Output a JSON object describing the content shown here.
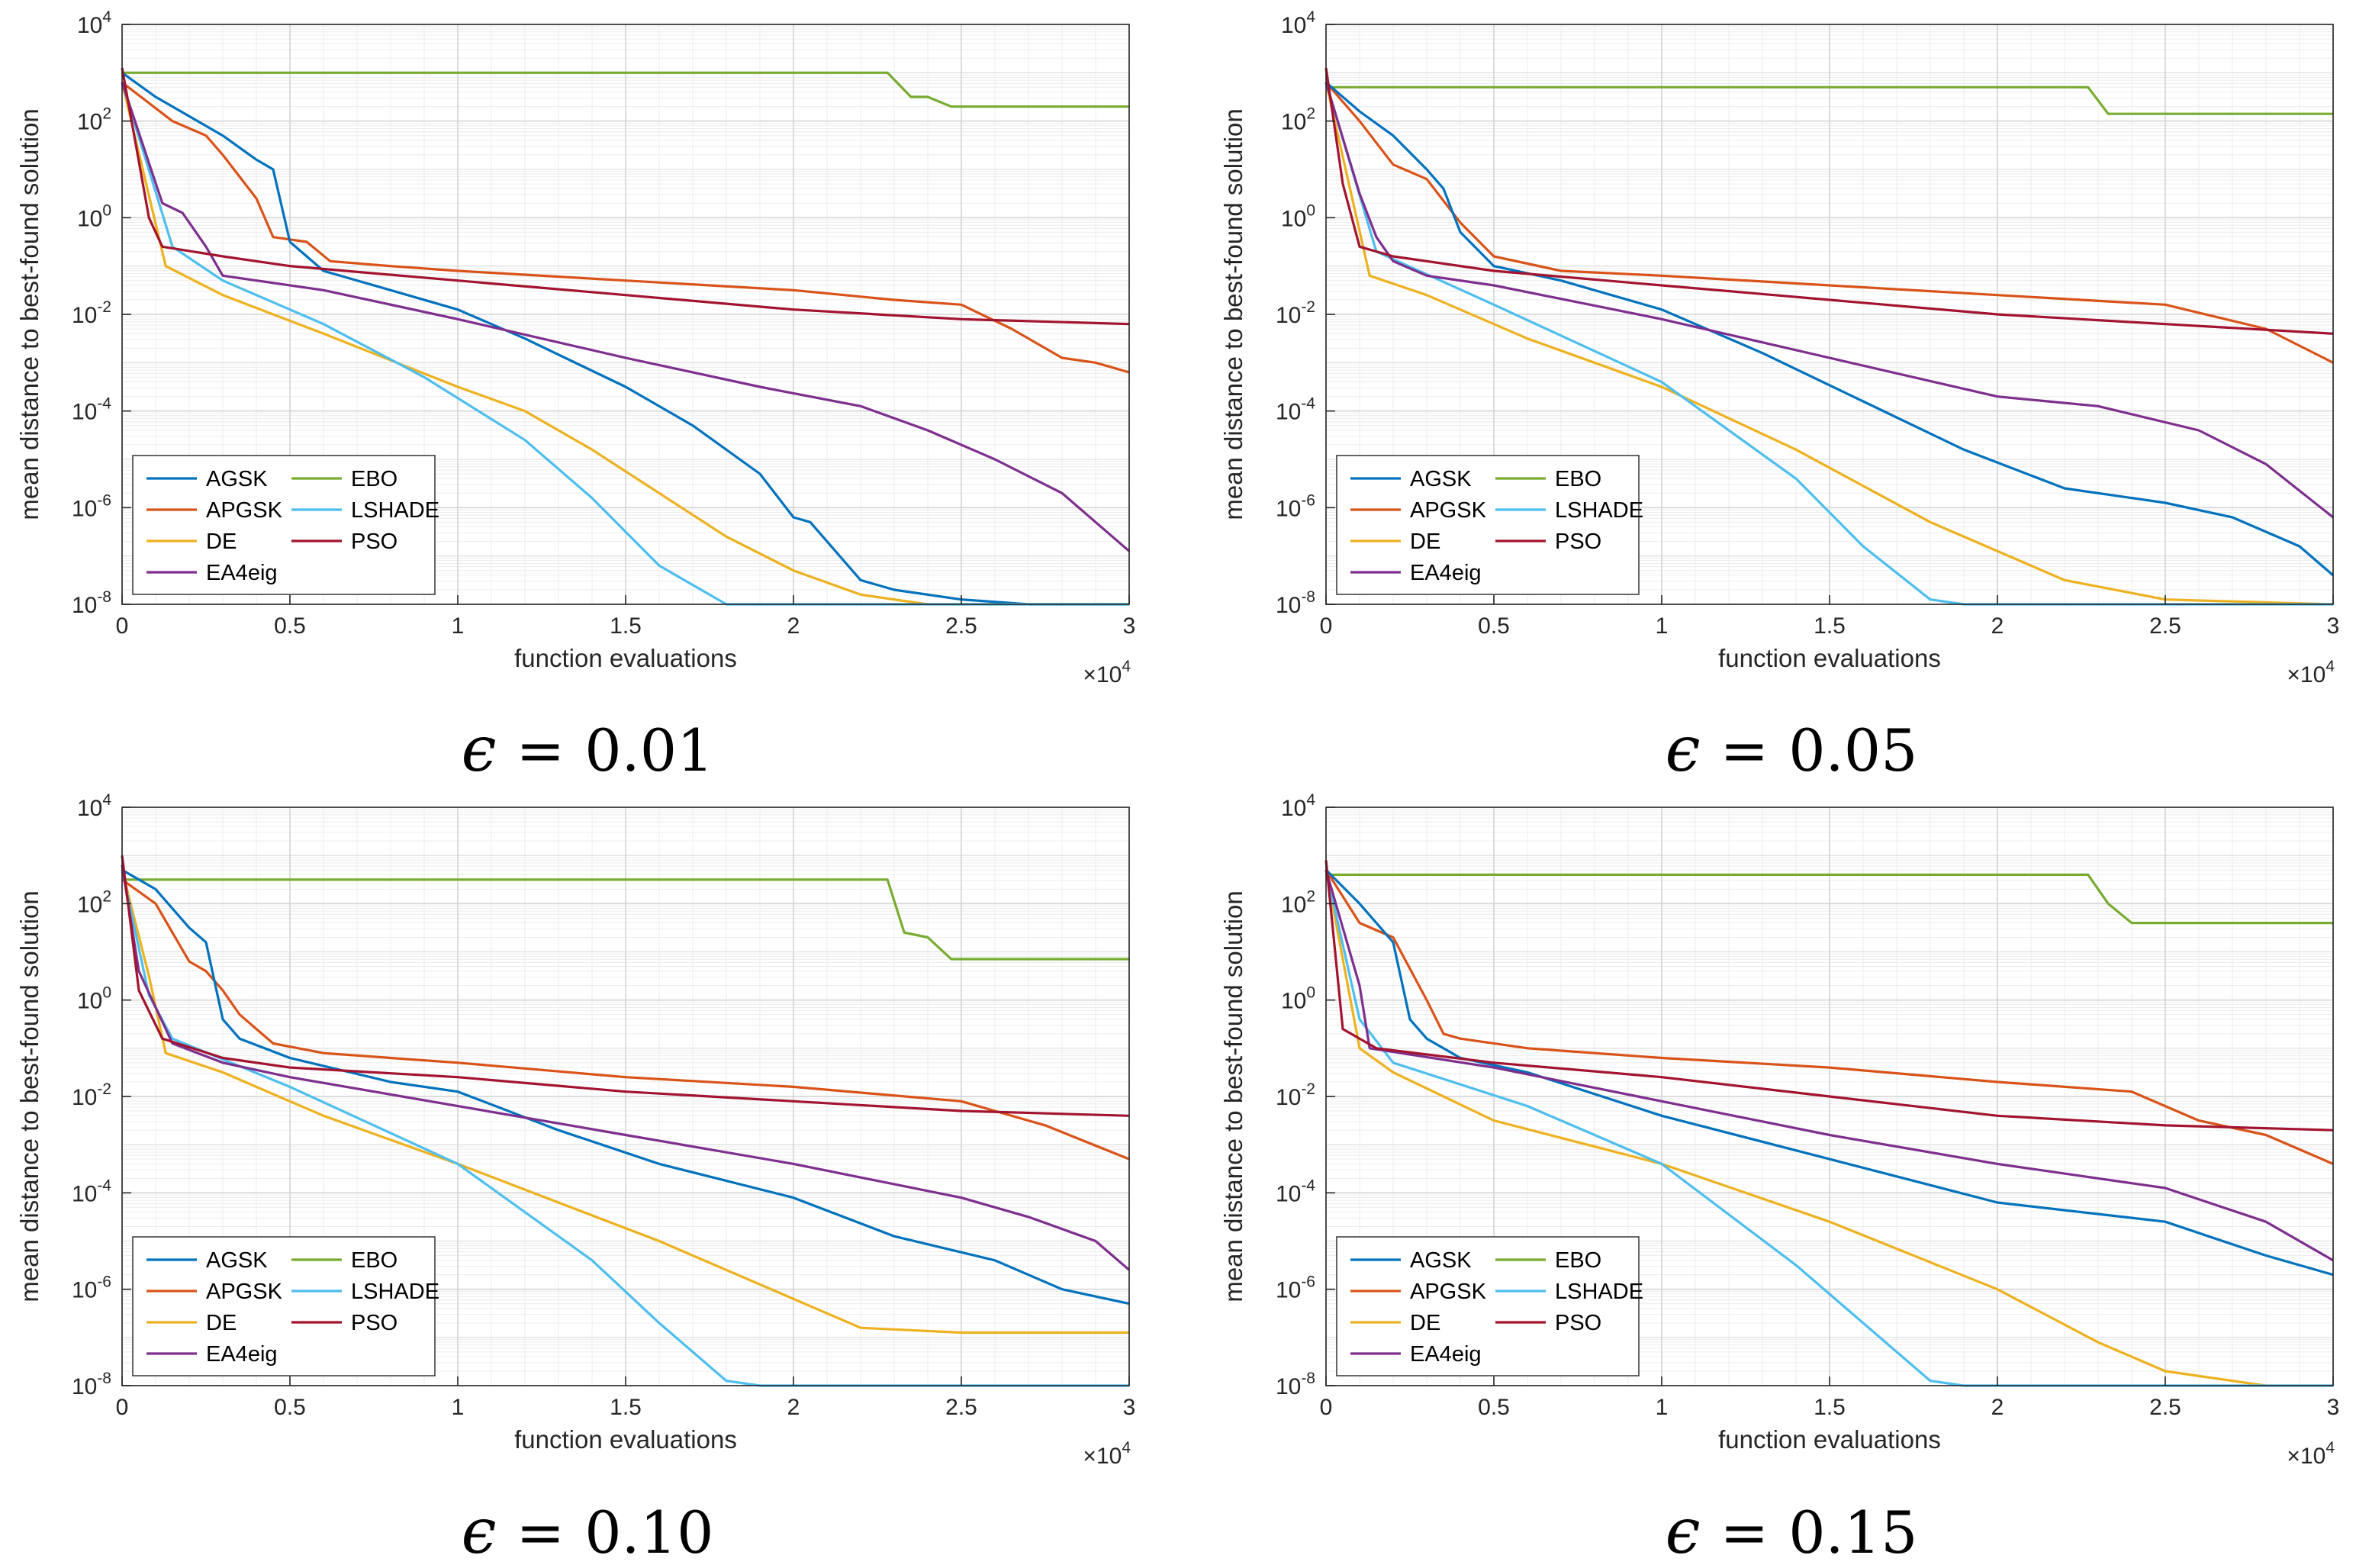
{
  "colors": {
    "AGSK": "#0072BD",
    "APGSK": "#D95319",
    "DE": "#EDB120",
    "EA4eig": "#7E2F8E",
    "EBO": "#77AC30",
    "LSHADE": "#4DBEEE",
    "PSO": "#A2142F"
  },
  "chart_data": [
    {
      "type": "line",
      "caption": {
        "symbol": "ϵ",
        "relation": "=",
        "value": "0.01"
      },
      "xlabel": "function evaluations",
      "ylabel": "mean distance to best-found solution",
      "x_multiplier": {
        "base": "×10",
        "exp": "4"
      },
      "xlim": [
        0,
        3
      ],
      "xscale": "linear",
      "ylim": [
        1e-08,
        10000.0
      ],
      "yscale": "log",
      "xticks": [
        "0",
        "0.5",
        "1",
        "1.5",
        "2",
        "2.5",
        "3"
      ],
      "yticks": [
        {
          "base": "10",
          "exp": "-8"
        },
        {
          "base": "10",
          "exp": "-6"
        },
        {
          "base": "10",
          "exp": "-4"
        },
        {
          "base": "10",
          "exp": "-2"
        },
        {
          "base": "10",
          "exp": "0"
        },
        {
          "base": "10",
          "exp": "2"
        },
        {
          "base": "10",
          "exp": "4"
        }
      ],
      "legend": {
        "location": "bottom-left",
        "entries": [
          "AGSK",
          "EBO",
          "APGSK",
          "LSHADE",
          "DE",
          "PSO",
          "EA4eig"
        ]
      },
      "series": [
        {
          "name": "EBO",
          "x": [
            0,
            2.28,
            2.35,
            2.4,
            2.47,
            3.0
          ],
          "y": [
            3.0,
            3.0,
            2.5,
            2.5,
            2.3,
            2.3
          ]
        },
        {
          "name": "APGSK",
          "x": [
            0,
            0.15,
            0.25,
            0.3,
            0.4,
            0.45,
            0.55,
            0.62,
            0.8,
            1.0,
            1.5,
            2.0,
            2.3,
            2.5,
            2.65,
            2.8,
            2.9,
            3.0
          ],
          "y": [
            2.8,
            2.0,
            1.7,
            1.3,
            0.4,
            -0.4,
            -0.5,
            -0.9,
            -1.0,
            -1.1,
            -1.3,
            -1.5,
            -1.7,
            -1.8,
            -2.3,
            -2.9,
            -3.0,
            -3.2
          ]
        },
        {
          "name": "AGSK",
          "x": [
            0,
            0.1,
            0.3,
            0.4,
            0.45,
            0.5,
            0.6,
            0.8,
            1.0,
            1.2,
            1.5,
            1.7,
            1.9,
            2.0,
            2.05,
            2.2,
            2.3,
            2.5,
            2.7,
            3.0
          ],
          "y": [
            3.0,
            2.5,
            1.7,
            1.2,
            1.0,
            -0.5,
            -1.1,
            -1.5,
            -1.9,
            -2.5,
            -3.5,
            -4.3,
            -5.3,
            -6.2,
            -6.3,
            -7.5,
            -7.7,
            -7.9,
            -8.0,
            -8.0
          ]
        },
        {
          "name": "DE",
          "x": [
            0,
            0.13,
            0.3,
            0.6,
            1.0,
            1.2,
            1.4,
            1.6,
            1.8,
            2.0,
            2.2,
            2.4,
            3.0
          ],
          "y": [
            2.8,
            -1.0,
            -1.6,
            -2.4,
            -3.5,
            -4.0,
            -4.8,
            -5.7,
            -6.6,
            -7.3,
            -7.8,
            -8.0,
            -8.0
          ]
        },
        {
          "name": "LSHADE",
          "x": [
            0,
            0.15,
            0.3,
            0.6,
            0.9,
            1.2,
            1.4,
            1.6,
            1.8,
            1.9,
            3.0
          ],
          "y": [
            2.8,
            -0.6,
            -1.3,
            -2.2,
            -3.3,
            -4.6,
            -5.8,
            -7.2,
            -8.0,
            -8.0,
            -8.0
          ]
        },
        {
          "name": "EA4eig",
          "x": [
            0,
            0.12,
            0.18,
            0.25,
            0.3,
            0.6,
            1.0,
            1.5,
            1.9,
            2.2,
            2.4,
            2.6,
            2.8,
            2.9,
            3.0
          ],
          "y": [
            2.8,
            0.3,
            0.1,
            -0.6,
            -1.2,
            -1.5,
            -2.1,
            -2.9,
            -3.5,
            -3.9,
            -4.4,
            -5.0,
            -5.7,
            -6.3,
            -6.9
          ]
        },
        {
          "name": "PSO",
          "x": [
            0,
            0.08,
            0.12,
            0.3,
            0.5,
            1.0,
            1.5,
            2.0,
            2.5,
            3.0
          ],
          "y": [
            3.1,
            0.0,
            -0.6,
            -0.8,
            -1.0,
            -1.3,
            -1.6,
            -1.9,
            -2.1,
            -2.2
          ]
        }
      ]
    },
    {
      "type": "line",
      "caption": {
        "symbol": "ϵ",
        "relation": "=",
        "value": "0.05"
      },
      "xlabel": "function evaluations",
      "ylabel": "mean distance to best-found solution",
      "x_multiplier": {
        "base": "×10",
        "exp": "4"
      },
      "xlim": [
        0,
        3
      ],
      "xscale": "linear",
      "ylim": [
        1e-08,
        10000.0
      ],
      "yscale": "log",
      "xticks": [
        "0",
        "0.5",
        "1",
        "1.5",
        "2",
        "2.5",
        "3"
      ],
      "yticks": [
        {
          "base": "10",
          "exp": "-8"
        },
        {
          "base": "10",
          "exp": "-6"
        },
        {
          "base": "10",
          "exp": "-4"
        },
        {
          "base": "10",
          "exp": "-2"
        },
        {
          "base": "10",
          "exp": "0"
        },
        {
          "base": "10",
          "exp": "2"
        },
        {
          "base": "10",
          "exp": "4"
        }
      ],
      "legend": {
        "location": "bottom-left",
        "entries": [
          "AGSK",
          "EBO",
          "APGSK",
          "LSHADE",
          "DE",
          "PSO",
          "EA4eig"
        ]
      },
      "series": [
        {
          "name": "EBO",
          "x": [
            0,
            2.27,
            2.33,
            3.0
          ],
          "y": [
            2.7,
            2.7,
            2.15,
            2.15
          ]
        },
        {
          "name": "APGSK",
          "x": [
            0,
            0.1,
            0.2,
            0.3,
            0.4,
            0.5,
            0.7,
            1.0,
            1.5,
            2.0,
            2.5,
            2.8,
            3.0
          ],
          "y": [
            2.8,
            2.0,
            1.1,
            0.8,
            -0.1,
            -0.8,
            -1.1,
            -1.2,
            -1.4,
            -1.6,
            -1.8,
            -2.3,
            -3.0
          ]
        },
        {
          "name": "AGSK",
          "x": [
            0,
            0.1,
            0.2,
            0.3,
            0.35,
            0.4,
            0.5,
            0.7,
            1.0,
            1.3,
            1.6,
            1.9,
            2.2,
            2.5,
            2.7,
            2.9,
            3.0
          ],
          "y": [
            2.8,
            2.2,
            1.7,
            1.0,
            0.6,
            -0.3,
            -1.0,
            -1.3,
            -1.9,
            -2.8,
            -3.8,
            -4.8,
            -5.6,
            -5.9,
            -6.2,
            -6.8,
            -7.4
          ]
        },
        {
          "name": "DE",
          "x": [
            0,
            0.13,
            0.3,
            0.6,
            1.0,
            1.4,
            1.8,
            2.2,
            2.5,
            3.0
          ],
          "y": [
            2.8,
            -1.2,
            -1.6,
            -2.5,
            -3.5,
            -4.8,
            -6.3,
            -7.5,
            -7.9,
            -8.0
          ]
        },
        {
          "name": "LSHADE",
          "x": [
            0,
            0.15,
            0.5,
            1.0,
            1.4,
            1.6,
            1.8,
            1.9,
            3.0
          ],
          "y": [
            2.8,
            -0.7,
            -1.8,
            -3.4,
            -5.4,
            -6.8,
            -7.9,
            -8.0,
            -8.0
          ]
        },
        {
          "name": "EA4eig",
          "x": [
            0,
            0.1,
            0.15,
            0.2,
            0.3,
            0.5,
            1.0,
            1.5,
            2.0,
            2.3,
            2.6,
            2.8,
            3.0
          ],
          "y": [
            2.8,
            0.5,
            -0.4,
            -0.9,
            -1.2,
            -1.4,
            -2.1,
            -2.9,
            -3.7,
            -3.9,
            -4.4,
            -5.1,
            -6.2
          ]
        },
        {
          "name": "PSO",
          "x": [
            0,
            0.05,
            0.1,
            0.2,
            0.5,
            1.0,
            1.5,
            2.0,
            2.5,
            3.0
          ],
          "y": [
            3.1,
            0.7,
            -0.6,
            -0.8,
            -1.1,
            -1.4,
            -1.7,
            -2.0,
            -2.2,
            -2.4
          ]
        }
      ]
    },
    {
      "type": "line",
      "caption": {
        "symbol": "ϵ",
        "relation": "=",
        "value": "0.10"
      },
      "xlabel": "function evaluations",
      "ylabel": "mean distance to best-found solution",
      "x_multiplier": {
        "base": "×10",
        "exp": "4"
      },
      "xlim": [
        0,
        3
      ],
      "xscale": "linear",
      "ylim": [
        1e-08,
        10000.0
      ],
      "yscale": "log",
      "xticks": [
        "0",
        "0.5",
        "1",
        "1.5",
        "2",
        "2.5",
        "3"
      ],
      "yticks": [
        {
          "base": "10",
          "exp": "-8"
        },
        {
          "base": "10",
          "exp": "-6"
        },
        {
          "base": "10",
          "exp": "-4"
        },
        {
          "base": "10",
          "exp": "-2"
        },
        {
          "base": "10",
          "exp": "0"
        },
        {
          "base": "10",
          "exp": "2"
        },
        {
          "base": "10",
          "exp": "4"
        }
      ],
      "legend": {
        "location": "bottom-left",
        "entries": [
          "AGSK",
          "EBO",
          "APGSK",
          "LSHADE",
          "DE",
          "PSO",
          "EA4eig"
        ]
      },
      "series": [
        {
          "name": "EBO",
          "x": [
            0,
            2.28,
            2.33,
            2.4,
            2.47,
            3.0
          ],
          "y": [
            2.5,
            2.5,
            1.4,
            1.3,
            0.85,
            0.85
          ]
        },
        {
          "name": "APGSK",
          "x": [
            0,
            0.1,
            0.2,
            0.25,
            0.3,
            0.35,
            0.45,
            0.6,
            1.0,
            1.5,
            2.0,
            2.5,
            2.6,
            2.75,
            3.0
          ],
          "y": [
            2.5,
            2.0,
            0.8,
            0.6,
            0.2,
            -0.3,
            -0.9,
            -1.1,
            -1.3,
            -1.6,
            -1.8,
            -2.1,
            -2.3,
            -2.6,
            -3.3
          ]
        },
        {
          "name": "AGSK",
          "x": [
            0,
            0.1,
            0.2,
            0.25,
            0.3,
            0.35,
            0.5,
            0.8,
            1.0,
            1.3,
            1.6,
            2.0,
            2.3,
            2.6,
            2.8,
            3.0
          ],
          "y": [
            2.7,
            2.3,
            1.5,
            1.2,
            -0.4,
            -0.8,
            -1.2,
            -1.7,
            -1.9,
            -2.7,
            -3.4,
            -4.1,
            -4.9,
            -5.4,
            -6.0,
            -6.3
          ]
        },
        {
          "name": "DE",
          "x": [
            0,
            0.08,
            0.13,
            0.3,
            0.6,
            1.0,
            1.3,
            1.6,
            2.0,
            2.2,
            2.5,
            3.0
          ],
          "y": [
            2.7,
            0.5,
            -1.1,
            -1.5,
            -2.4,
            -3.4,
            -4.2,
            -5.0,
            -6.2,
            -6.8,
            -6.9,
            -6.9
          ]
        },
        {
          "name": "LSHADE",
          "x": [
            0,
            0.08,
            0.15,
            0.5,
            1.0,
            1.4,
            1.6,
            1.8,
            1.9,
            3.0
          ],
          "y": [
            2.7,
            0.1,
            -0.8,
            -1.8,
            -3.4,
            -5.4,
            -6.7,
            -7.9,
            -8.0,
            -8.0
          ]
        },
        {
          "name": "EA4eig",
          "x": [
            0,
            0.05,
            0.15,
            0.3,
            0.5,
            1.0,
            1.5,
            2.0,
            2.5,
            2.7,
            2.9,
            3.0
          ],
          "y": [
            2.8,
            0.6,
            -0.9,
            -1.3,
            -1.6,
            -2.2,
            -2.8,
            -3.4,
            -4.1,
            -4.5,
            -5.0,
            -5.6
          ]
        },
        {
          "name": "PSO",
          "x": [
            0,
            0.05,
            0.12,
            0.3,
            0.5,
            1.0,
            1.5,
            2.0,
            2.5,
            3.0
          ],
          "y": [
            3.0,
            0.2,
            -0.8,
            -1.2,
            -1.4,
            -1.6,
            -1.9,
            -2.1,
            -2.3,
            -2.4
          ]
        }
      ]
    },
    {
      "type": "line",
      "caption": {
        "symbol": "ϵ",
        "relation": "=",
        "value": "0.15"
      },
      "xlabel": "function evaluations",
      "ylabel": "mean distance to best-found solution",
      "x_multiplier": {
        "base": "×10",
        "exp": "4"
      },
      "xlim": [
        0,
        3
      ],
      "xscale": "linear",
      "ylim": [
        1e-08,
        10000.0
      ],
      "yscale": "log",
      "xticks": [
        "0",
        "0.5",
        "1",
        "1.5",
        "2",
        "2.5",
        "3"
      ],
      "yticks": [
        {
          "base": "10",
          "exp": "-8"
        },
        {
          "base": "10",
          "exp": "-6"
        },
        {
          "base": "10",
          "exp": "-4"
        },
        {
          "base": "10",
          "exp": "-2"
        },
        {
          "base": "10",
          "exp": "0"
        },
        {
          "base": "10",
          "exp": "2"
        },
        {
          "base": "10",
          "exp": "4"
        }
      ],
      "legend": {
        "location": "bottom-left",
        "entries": [
          "AGSK",
          "EBO",
          "APGSK",
          "LSHADE",
          "DE",
          "PSO",
          "EA4eig"
        ]
      },
      "series": [
        {
          "name": "EBO",
          "x": [
            0,
            2.27,
            2.33,
            2.4,
            3.0
          ],
          "y": [
            2.6,
            2.6,
            2.0,
            1.6,
            1.6
          ]
        },
        {
          "name": "APGSK",
          "x": [
            0,
            0.1,
            0.2,
            0.3,
            0.35,
            0.4,
            0.6,
            1.0,
            1.5,
            2.0,
            2.4,
            2.6,
            2.8,
            3.0
          ],
          "y": [
            2.7,
            1.6,
            1.3,
            0.0,
            -0.7,
            -0.8,
            -1.0,
            -1.2,
            -1.4,
            -1.7,
            -1.9,
            -2.5,
            -2.8,
            -3.4
          ]
        },
        {
          "name": "AGSK",
          "x": [
            0,
            0.1,
            0.2,
            0.25,
            0.3,
            0.4,
            0.6,
            1.0,
            1.5,
            2.0,
            2.5,
            2.8,
            3.0
          ],
          "y": [
            2.7,
            2.0,
            1.2,
            -0.4,
            -0.8,
            -1.2,
            -1.5,
            -2.4,
            -3.3,
            -4.2,
            -4.6,
            -5.3,
            -5.7
          ]
        },
        {
          "name": "DE",
          "x": [
            0,
            0.1,
            0.2,
            0.5,
            1.0,
            1.5,
            2.0,
            2.3,
            2.5,
            2.8,
            3.0
          ],
          "y": [
            2.7,
            -1.0,
            -1.5,
            -2.5,
            -3.4,
            -4.6,
            -6.0,
            -7.1,
            -7.7,
            -8.0,
            -8.0
          ]
        },
        {
          "name": "LSHADE",
          "x": [
            0,
            0.1,
            0.2,
            0.6,
            1.0,
            1.4,
            1.7,
            1.8,
            1.9,
            3.0
          ],
          "y": [
            2.7,
            -0.4,
            -1.3,
            -2.2,
            -3.4,
            -5.5,
            -7.3,
            -7.9,
            -8.0,
            -8.0
          ]
        },
        {
          "name": "EA4eig",
          "x": [
            0,
            0.1,
            0.13,
            0.5,
            1.0,
            1.5,
            2.0,
            2.5,
            2.8,
            3.0
          ],
          "y": [
            2.7,
            0.3,
            -1.0,
            -1.4,
            -2.1,
            -2.8,
            -3.4,
            -3.9,
            -4.6,
            -5.4
          ]
        },
        {
          "name": "PSO",
          "x": [
            0,
            0.05,
            0.15,
            0.5,
            1.0,
            1.5,
            2.0,
            2.5,
            3.0
          ],
          "y": [
            2.9,
            -0.6,
            -1.0,
            -1.3,
            -1.6,
            -2.0,
            -2.4,
            -2.6,
            -2.7
          ]
        }
      ]
    }
  ]
}
